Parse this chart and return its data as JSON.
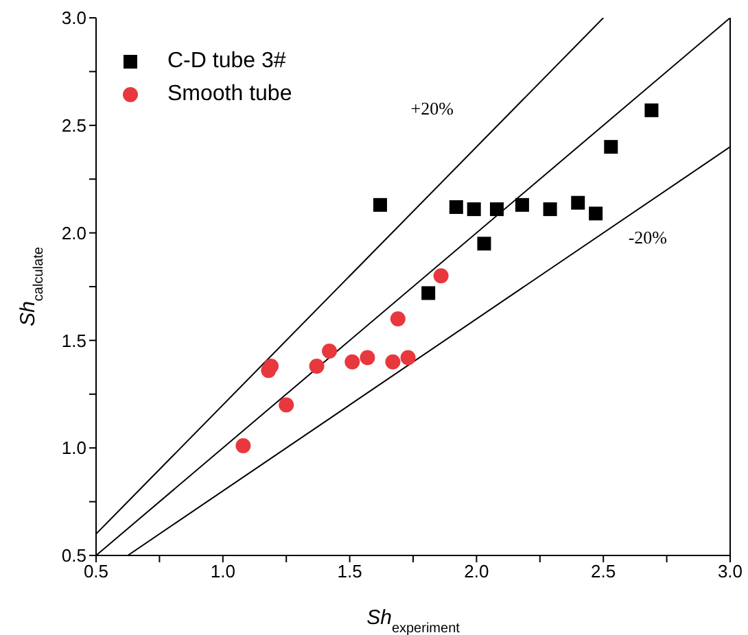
{
  "chart_data": {
    "type": "scatter",
    "xlabel": "Sh$_{experiment}$",
    "ylabel": "Sh$_{calculate}$",
    "xlim": [
      0.5,
      3.0
    ],
    "ylim": [
      0.5,
      3.0
    ],
    "xticks": [
      0.5,
      {
        "value": 0.75,
        "label": null
      },
      {
        "value": 1,
        "label": "1.0"
      },
      {
        "value": 1.25,
        "label": null
      },
      1.5,
      {
        "value": 1.75,
        "label": null
      },
      {
        "value": 2,
        "label": "2.0"
      },
      {
        "value": 2.25,
        "label": null
      },
      2.5,
      {
        "value": 2.75,
        "label": null
      },
      {
        "value": 3,
        "label": "3.0"
      }
    ],
    "yticks": [
      0.5,
      {
        "value": 0.75,
        "label": null
      },
      {
        "value": 1,
        "label": "1.0"
      },
      {
        "value": 1.25,
        "label": null
      },
      1.5,
      {
        "value": 1.75,
        "label": null
      },
      {
        "value": 2,
        "label": "2.0"
      },
      {
        "value": 2.25,
        "label": null
      },
      2.5,
      {
        "value": 2.75,
        "label": null
      },
      {
        "value": 3,
        "label": "3.0"
      }
    ],
    "grid": false,
    "legend": "top left",
    "series": [
      {
        "name": "C-D tube 3#",
        "marker": "square",
        "color": "#000000",
        "x": [
          1.62,
          1.81,
          1.92,
          1.99,
          2.03,
          2.08,
          2.18,
          2.29,
          2.4,
          2.47,
          2.53,
          2.69
        ],
        "values": [
          2.13,
          1.72,
          2.12,
          2.11,
          1.95,
          2.11,
          2.13,
          2.11,
          2.14,
          2.09,
          2.4,
          2.57
        ]
      },
      {
        "name": "Smooth tube",
        "marker": "circle",
        "color": "#e8383d",
        "x": [
          1.08,
          1.18,
          1.19,
          1.25,
          1.37,
          1.42,
          1.51,
          1.57,
          1.67,
          1.69,
          1.73,
          1.86
        ],
        "values": [
          1.01,
          1.36,
          1.38,
          1.2,
          1.38,
          1.45,
          1.4,
          1.42,
          1.4,
          1.6,
          1.42,
          1.8
        ]
      },
      {
        "type": "line",
        "color": "#000000",
        "x": [
          0.5,
          2.5
        ],
        "values": [
          0.6,
          3.0
        ]
      },
      {
        "type": "line",
        "color": "#000000",
        "x": [
          0.5,
          3.0
        ],
        "values": [
          0.5,
          3.0
        ]
      },
      {
        "type": "line",
        "color": "#000000",
        "x": [
          0.625,
          3.0
        ],
        "values": [
          0.5,
          2.4
        ]
      }
    ],
    "annotations": [
      "+20%",
      "-20%"
    ]
  }
}
